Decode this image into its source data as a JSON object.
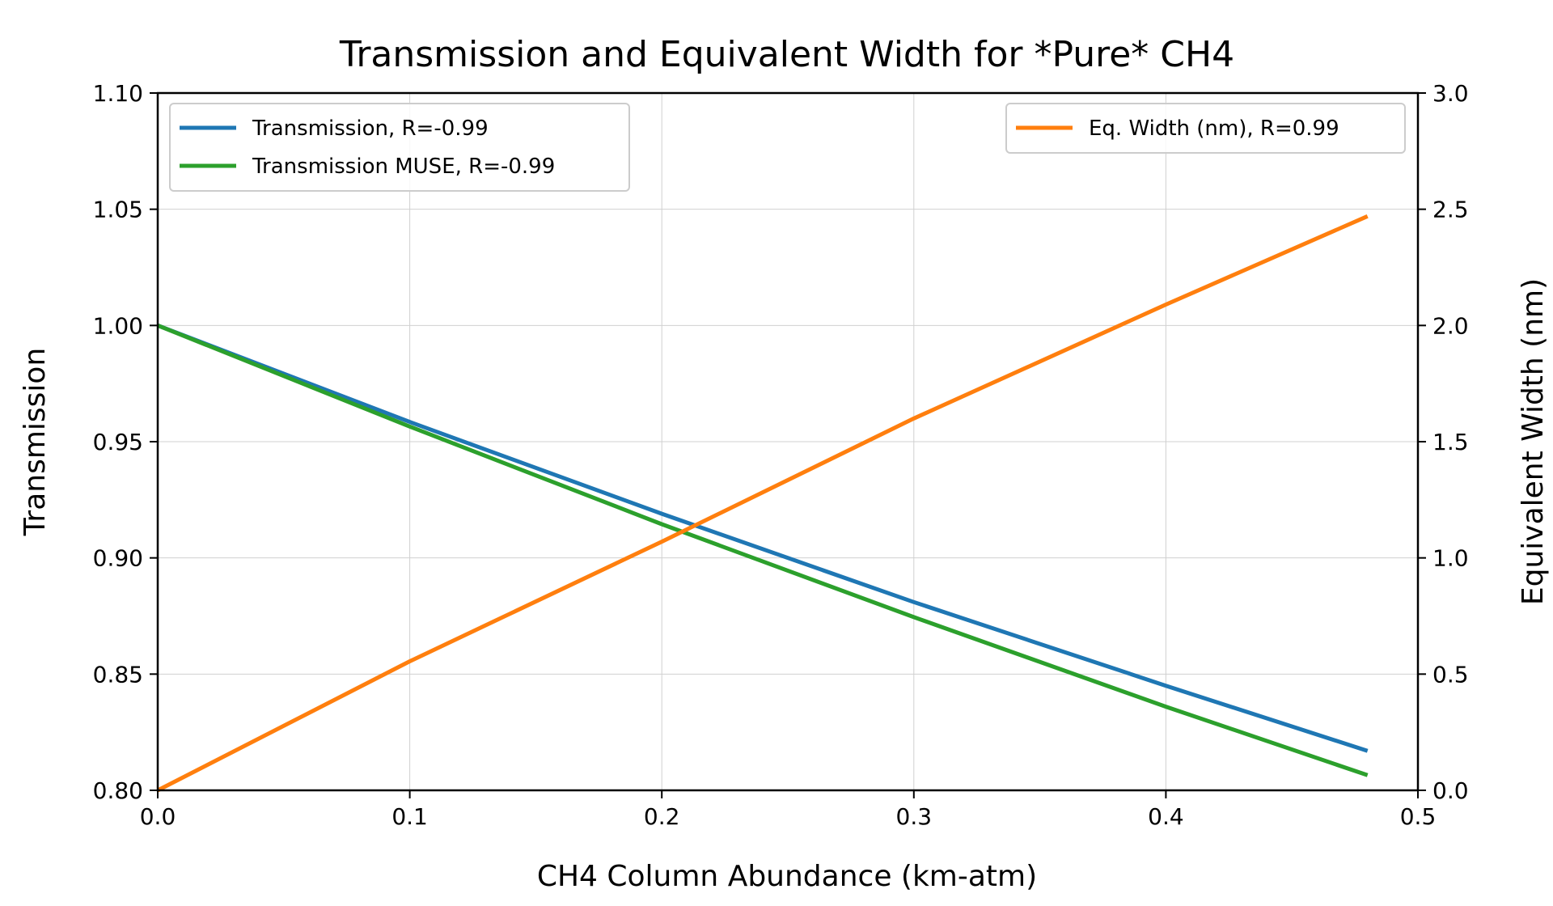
{
  "chart_data": {
    "type": "line",
    "title": "Transmission and Equivalent Width for *Pure* CH4",
    "xlabel": "CH4 Column Abundance (km-atm)",
    "ylabel": "Transmission",
    "y2label": "Equivalent Width (nm)",
    "xlim": [
      0.0,
      0.5
    ],
    "ylim": [
      0.8,
      1.1
    ],
    "y2lim": [
      0.0,
      3.0
    ],
    "xticks": [
      "0.0",
      "0.1",
      "0.2",
      "0.3",
      "0.4",
      "0.5"
    ],
    "yticks": [
      "0.80",
      "0.85",
      "0.90",
      "0.95",
      "1.00",
      "1.05",
      "1.10"
    ],
    "y2ticks": [
      "0.0",
      "0.5",
      "1.0",
      "1.5",
      "2.0",
      "2.5",
      "3.0"
    ],
    "grid": true,
    "series": [
      {
        "name": "Transmission, R=-0.99",
        "axis": "left",
        "color": "#1f77b4",
        "x": [
          0.0,
          0.1,
          0.2,
          0.3,
          0.4,
          0.48
        ],
        "values": [
          1.0,
          0.9585,
          0.919,
          0.881,
          0.845,
          0.817
        ]
      },
      {
        "name": "Transmission MUSE, R=-0.99",
        "axis": "left",
        "color": "#2ca02c",
        "x": [
          0.0,
          0.1,
          0.2,
          0.3,
          0.4,
          0.48
        ],
        "values": [
          1.0,
          0.9565,
          0.9145,
          0.8745,
          0.836,
          0.8065
        ]
      },
      {
        "name": "Eq. Width (nm), R=0.99",
        "axis": "right",
        "color": "#ff7f0e",
        "x": [
          0.0,
          0.1,
          0.2,
          0.3,
          0.4,
          0.48
        ],
        "values": [
          0.0,
          0.555,
          1.07,
          1.6,
          2.09,
          2.47
        ]
      }
    ],
    "legends": [
      {
        "placement": "upper left",
        "entries": [
          "Transmission, R=-0.99",
          "Transmission MUSE, R=-0.99"
        ]
      },
      {
        "placement": "upper right",
        "entries": [
          "Eq. Width (nm), R=0.99"
        ]
      }
    ]
  }
}
